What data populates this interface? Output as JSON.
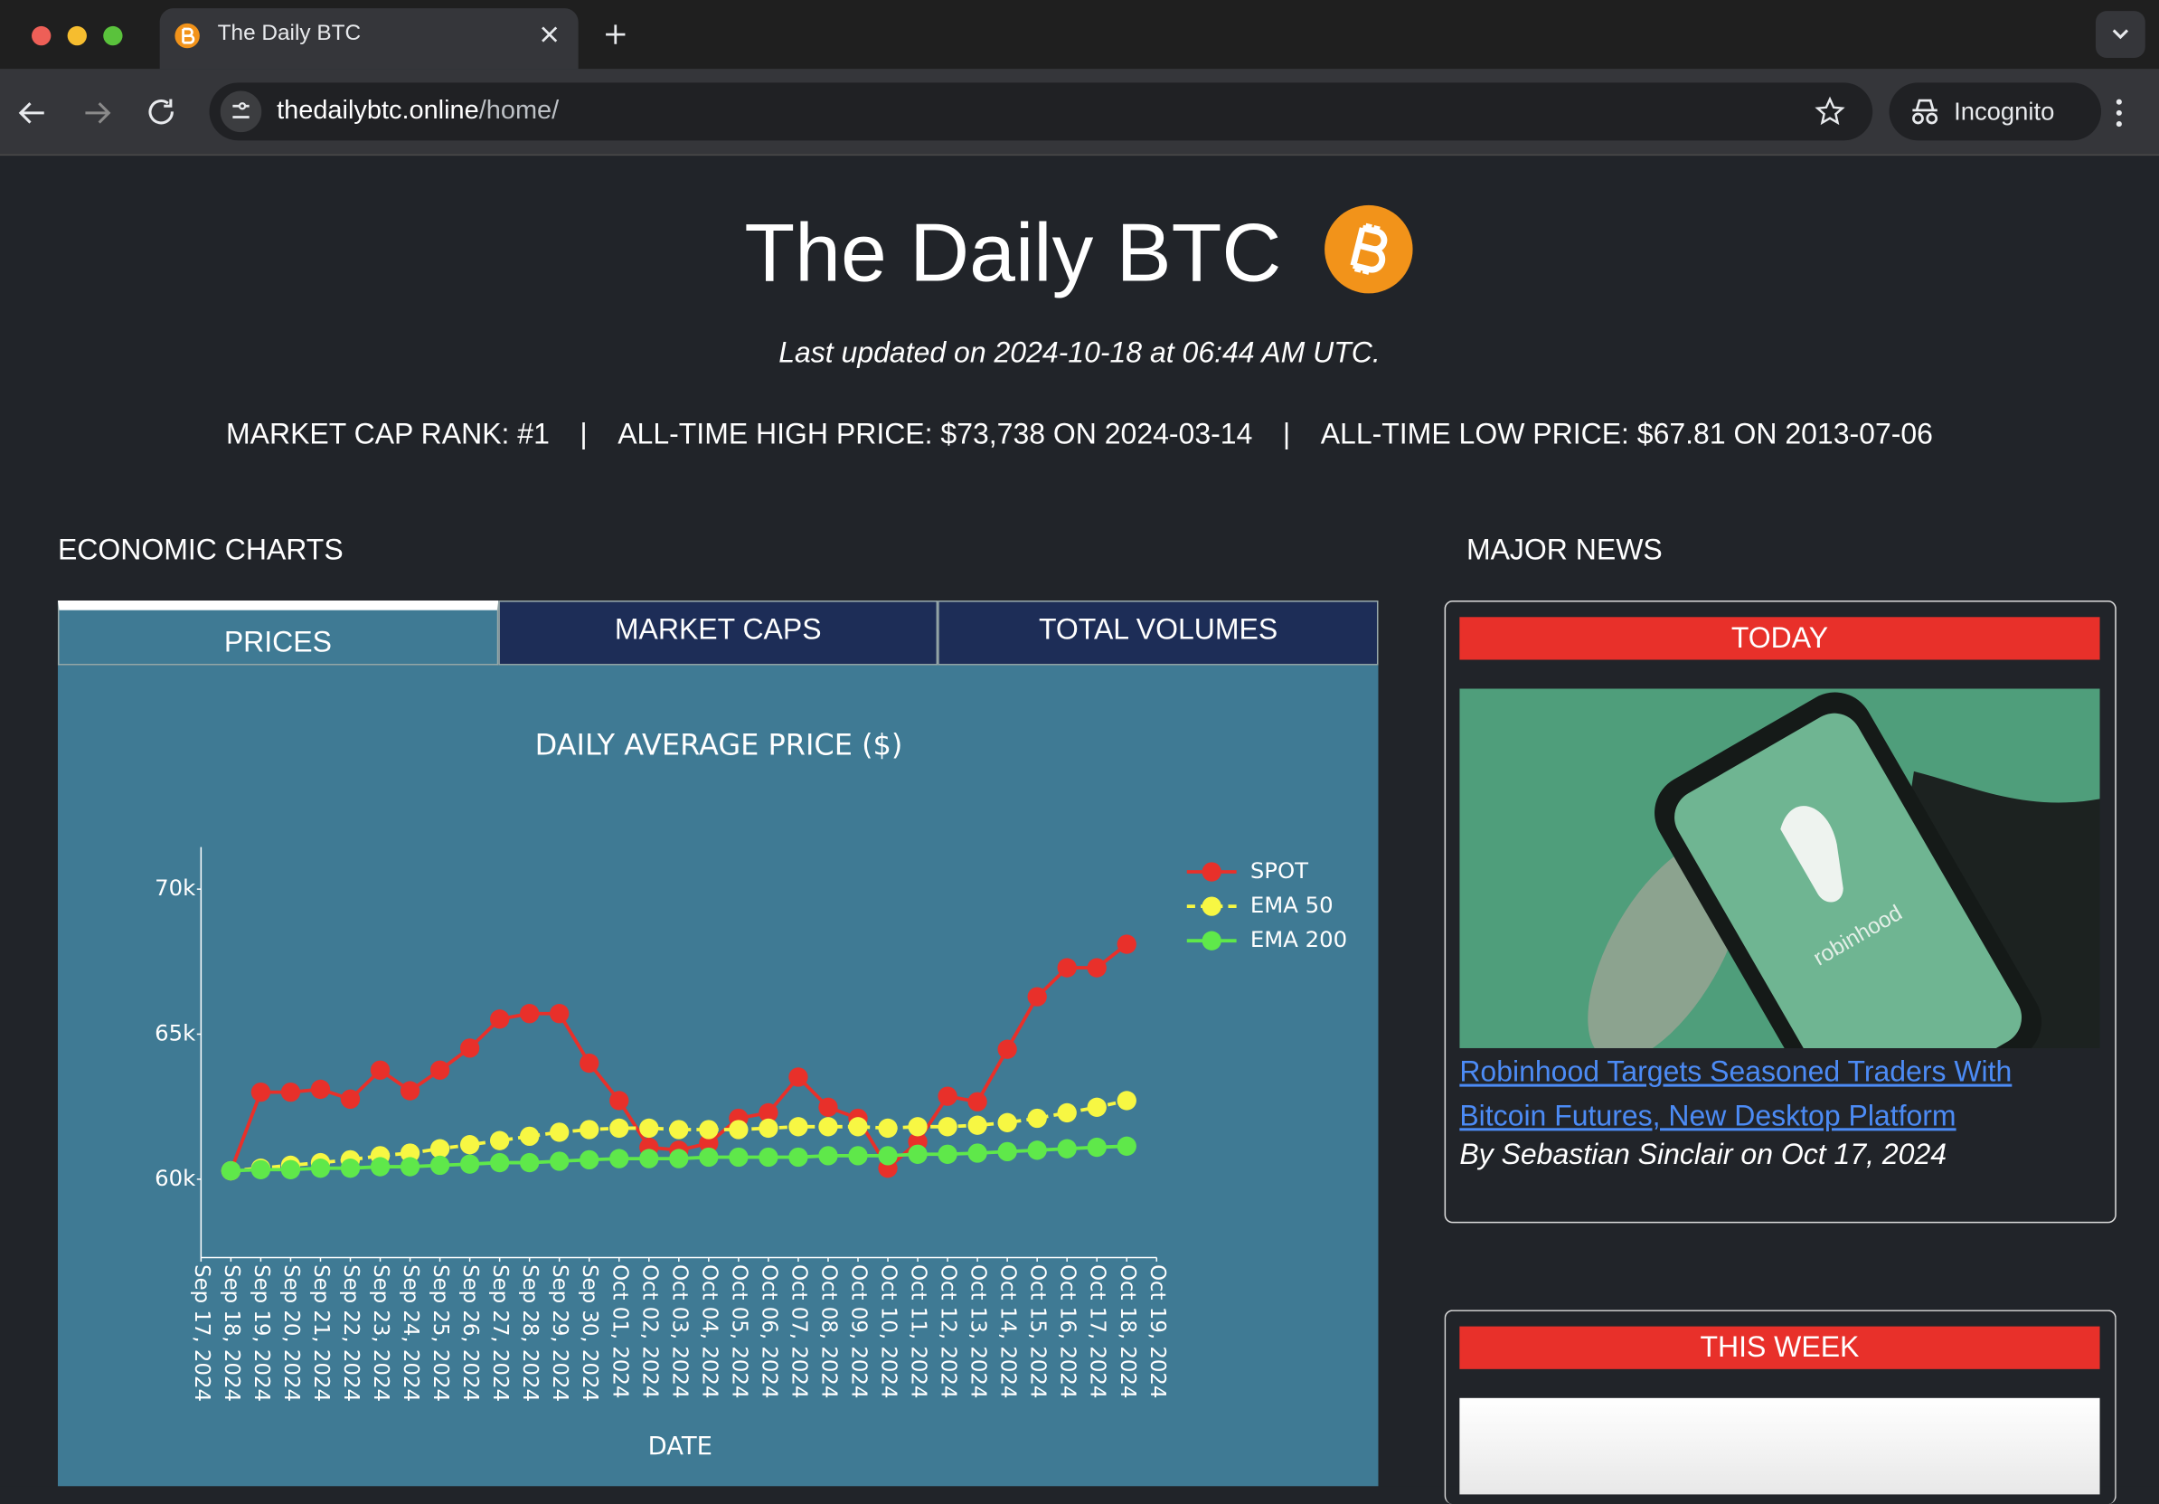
{
  "browser": {
    "tab_title": "The Daily BTC",
    "url_host": "thedailybtc.online",
    "url_path": "/home/",
    "profile": "Incognito"
  },
  "header": {
    "title": "The Daily BTC",
    "updated": "Last updated on 2024-10-18 at 06:44 AM UTC.",
    "stats": [
      "MARKET CAP RANK: #1",
      "ALL-TIME HIGH PRICE: $73,738 ON 2024-03-14",
      "ALL-TIME LOW PRICE: $67.81 ON 2013-07-06"
    ]
  },
  "sections": {
    "charts": "ECONOMIC CHARTS",
    "news": "MAJOR NEWS"
  },
  "tabs": [
    "PRICES",
    "MARKET CAPS",
    "TOTAL VOLUMES"
  ],
  "chart_data": {
    "type": "line",
    "title": "DAILY AVERAGE PRICE ($)",
    "x_label": "DATE",
    "legend": "top-right",
    "x": [
      "Sep 18, 2024",
      "Sep 19, 2024",
      "Sep 20, 2024",
      "Sep 21, 2024",
      "Sep 22, 2024",
      "Sep 23, 2024",
      "Sep 24, 2024",
      "Sep 25, 2024",
      "Sep 26, 2024",
      "Sep 27, 2024",
      "Sep 28, 2024",
      "Sep 29, 2024",
      "Sep 30, 2024",
      "Oct 01, 2024",
      "Oct 02, 2024",
      "Oct 03, 2024",
      "Oct 04, 2024",
      "Oct 05, 2024",
      "Oct 06, 2024",
      "Oct 07, 2024",
      "Oct 08, 2024",
      "Oct 09, 2024",
      "Oct 10, 2024",
      "Oct 11, 2024",
      "Oct 12, 2024",
      "Oct 13, 2024",
      "Oct 14, 2024",
      "Oct 15, 2024",
      "Oct 16, 2024",
      "Oct 17, 2024",
      "Oct 18, 2024"
    ],
    "xlim": [
      "Sep 17, 2024",
      "Oct 19, 2024"
    ],
    "xticks": [
      "Sep 17, 2024",
      "Sep 18, 2024",
      "Sep 19, 2024",
      "Sep 20, 2024",
      "Sep 21, 2024",
      "Sep 22, 2024",
      "Sep 23, 2024",
      "Sep 24, 2024",
      "Sep 25, 2024",
      "Sep 26, 2024",
      "Sep 27, 2024",
      "Sep 28, 2024",
      "Sep 29, 2024",
      "Sep 30, 2024",
      "Oct 01, 2024",
      "Oct 02, 2024",
      "Oct 03, 2024",
      "Oct 04, 2024",
      "Oct 05, 2024",
      "Oct 06, 2024",
      "Oct 07, 2024",
      "Oct 08, 2024",
      "Oct 09, 2024",
      "Oct 10, 2024",
      "Oct 11, 2024",
      "Oct 12, 2024",
      "Oct 13, 2024",
      "Oct 14, 2024",
      "Oct 15, 2024",
      "Oct 16, 2024",
      "Oct 17, 2024",
      "Oct 18, 2024",
      "Oct 19, 2024"
    ],
    "ylim": [
      57300,
      71450
    ],
    "yticks": [
      {
        "value": 60000,
        "label": "60k"
      },
      {
        "value": 65000,
        "label": "65k"
      },
      {
        "value": 70000,
        "label": "70k"
      }
    ],
    "series": [
      {
        "name": "SPOT",
        "color": "#e8302a",
        "dash": false,
        "values": [
          60290,
          63000,
          63000,
          63100,
          62760,
          63760,
          63050,
          63760,
          64520,
          65520,
          65710,
          65710,
          64000,
          62710,
          61100,
          61000,
          61240,
          62100,
          62290,
          63520,
          62480,
          62100,
          60380,
          61290,
          62860,
          62670,
          64480,
          66290,
          67290,
          67290,
          68100
        ]
      },
      {
        "name": "EMA 50",
        "color": "#f7f743",
        "dash": true,
        "values": [
          60290,
          60380,
          60480,
          60570,
          60670,
          60810,
          60900,
          61050,
          61190,
          61330,
          61480,
          61620,
          61710,
          61760,
          61760,
          61710,
          61710,
          61710,
          61760,
          61810,
          61810,
          61810,
          61760,
          61810,
          61810,
          61860,
          61950,
          62100,
          62290,
          62480,
          62710
        ]
      },
      {
        "name": "EMA 200",
        "color": "#5fe84a",
        "dash": false,
        "values": [
          60290,
          60330,
          60330,
          60380,
          60380,
          60430,
          60430,
          60480,
          60520,
          60570,
          60570,
          60620,
          60670,
          60710,
          60710,
          60710,
          60760,
          60760,
          60760,
          60760,
          60810,
          60810,
          60810,
          60860,
          60860,
          60900,
          60950,
          61000,
          61050,
          61100,
          61140
        ]
      }
    ]
  },
  "news": {
    "today": {
      "label": "TODAY",
      "image_text": "robinhood",
      "headline": "Robinhood Targets Seasoned Traders With Bitcoin Futures, New Desktop Platform",
      "byline": "By Sebastian Sinclair on Oct 17, 2024"
    },
    "week": {
      "label": "THIS WEEK"
    }
  }
}
